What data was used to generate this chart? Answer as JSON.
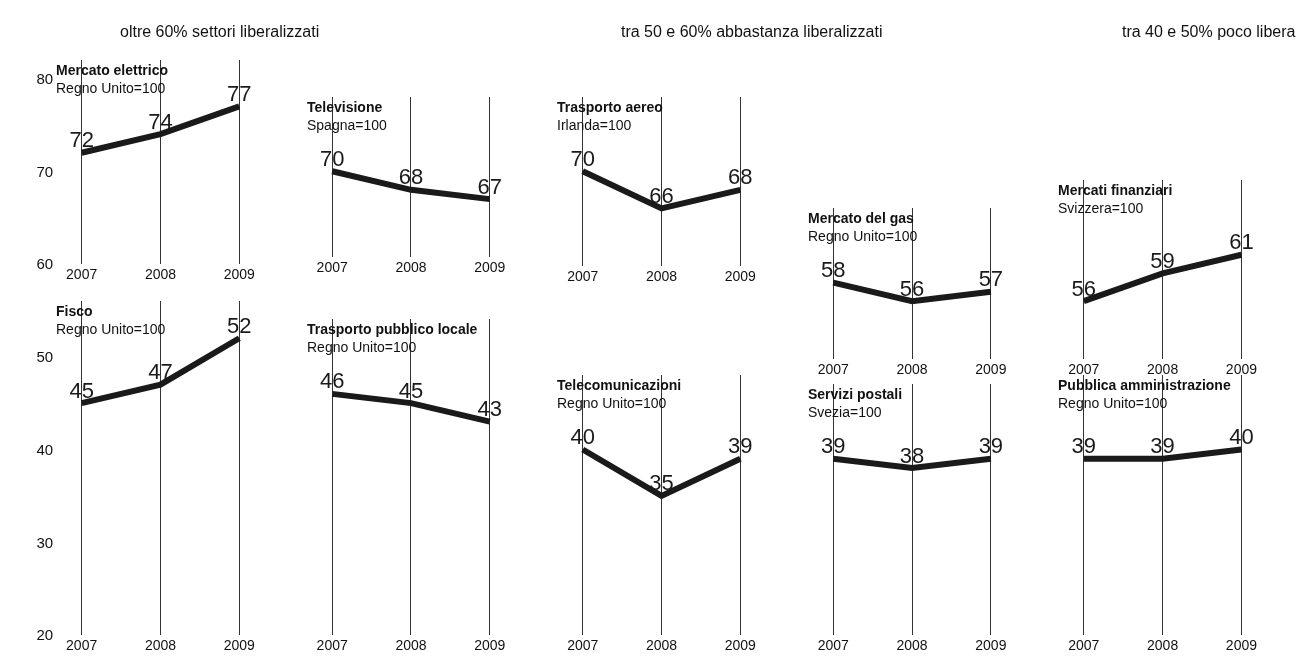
{
  "chart_data": [
    {
      "type": "line",
      "title": "Mercato elettrico",
      "subtitle": "Regno Unito=100",
      "annotations": [
        "oltre 60% settori liberalizzati"
      ],
      "categories": [
        "2007",
        "2008",
        "2009"
      ],
      "values": [
        72,
        74,
        77
      ],
      "color": "#1a1a1a",
      "ylim": [
        60,
        82
      ],
      "yticks": [
        60,
        70,
        80
      ],
      "data_labels": true,
      "grid": "x"
    },
    {
      "type": "line",
      "title": "Televisione",
      "subtitle": "Spagna=100",
      "categories": [
        "2007",
        "2008",
        "2009"
      ],
      "values": [
        70,
        68,
        67
      ],
      "color": "#1a1a1a",
      "tick_labels": "x",
      "data_labels": true,
      "grid": "x"
    },
    {
      "type": "line",
      "title": "Trasporto aereo",
      "subtitle": "Irlanda=100",
      "annotations": [
        "tra 50 e 60% abbastanza liberalizzati"
      ],
      "categories": [
        "2007",
        "2008",
        "2009"
      ],
      "values": [
        70,
        66,
        68
      ],
      "color": "#1a1a1a",
      "tick_labels": "x",
      "data_labels": true,
      "grid": "x"
    },
    {
      "type": "line",
      "title": "Mercato del gas",
      "subtitle": "Regno Unito=100",
      "categories": [
        "2007",
        "2008",
        "2009"
      ],
      "values": [
        58,
        56,
        57
      ],
      "color": "#1a1a1a",
      "tick_labels": "x",
      "data_labels": true,
      "grid": "x"
    },
    {
      "type": "line",
      "title": "Mercati finanziari",
      "subtitle": "Svizzera=100",
      "annotations": [
        "tra 40 e 50% poco libera"
      ],
      "categories": [
        "2007",
        "2008",
        "2009"
      ],
      "values": [
        56,
        59,
        61
      ],
      "color": "#1a1a1a",
      "tick_labels": "x",
      "data_labels": true,
      "grid": "x"
    },
    {
      "type": "line",
      "title": "Fisco",
      "subtitle": "Regno Unito=100",
      "categories": [
        "2007",
        "2008",
        "2009"
      ],
      "values": [
        45,
        47,
        52
      ],
      "color": "#1a1a1a",
      "ylim": [
        20,
        56
      ],
      "yticks": [
        20,
        30,
        40,
        50
      ],
      "data_labels": true,
      "grid": "x"
    },
    {
      "type": "line",
      "title": "Trasporto pubblico locale",
      "subtitle": "Regno Unito=100",
      "categories": [
        "2007",
        "2008",
        "2009"
      ],
      "values": [
        46,
        45,
        43
      ],
      "color": "#1a1a1a",
      "tick_labels": "x",
      "data_labels": true,
      "grid": "x"
    },
    {
      "type": "line",
      "title": "Telecomunicazioni",
      "subtitle": "Regno Unito=100",
      "categories": [
        "2007",
        "2008",
        "2009"
      ],
      "values": [
        40,
        35,
        39
      ],
      "color": "#1a1a1a",
      "tick_labels": "x",
      "data_labels": true,
      "grid": "x"
    },
    {
      "type": "line",
      "title": "Servizi postali",
      "subtitle": "Svezia=100",
      "categories": [
        "2007",
        "2008",
        "2009"
      ],
      "values": [
        39,
        38,
        39
      ],
      "color": "#1a1a1a",
      "tick_labels": "x",
      "data_labels": true,
      "grid": "x"
    },
    {
      "type": "line",
      "title": "Pubblica amministrazione",
      "subtitle": "Regno Unito=100",
      "categories": [
        "2007",
        "2008",
        "2009"
      ],
      "values": [
        39,
        39,
        40
      ],
      "color": "#1a1a1a",
      "tick_labels": "x",
      "data_labels": true,
      "grid": "x"
    }
  ]
}
